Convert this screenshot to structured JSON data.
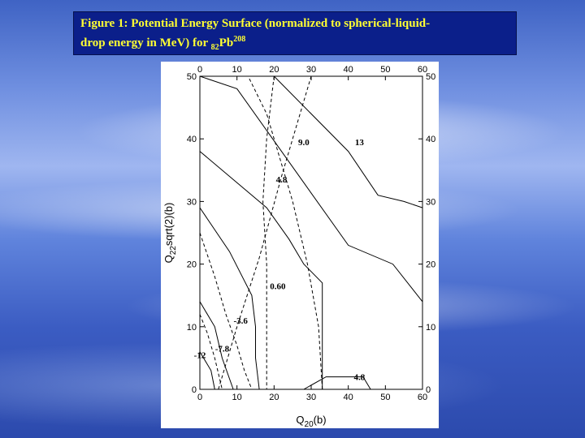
{
  "title": {
    "line1": "Figure 1: Potential Energy Surface (normalized to spherical-liquid-",
    "line2_prefix": "drop energy in MeV) for ",
    "sub": "82",
    "element": "Pb",
    "sup": "208"
  },
  "chart_data": {
    "type": "line",
    "xlabel": "Q20(b)",
    "ylabel": "Q22sqrt(2)(b)",
    "xlim": [
      0,
      60
    ],
    "ylim": [
      0,
      50
    ],
    "x_ticks": [
      0,
      10,
      20,
      30,
      40,
      50,
      60
    ],
    "y_ticks": [
      0,
      10,
      20,
      30,
      40,
      50
    ],
    "grid": false,
    "contour_labels": [
      "13",
      "9.0",
      "4.8",
      "0.60",
      "-3.6",
      "-7.8",
      "-12",
      "4.8"
    ],
    "series": [
      {
        "points": [
          [
            20,
            50
          ],
          [
            40,
            38
          ],
          [
            48,
            31
          ],
          [
            55,
            30
          ],
          [
            60,
            29
          ]
        ],
        "linestyle": "solid"
      },
      {
        "points": [
          [
            0,
            50
          ],
          [
            10,
            48
          ],
          [
            28,
            33
          ],
          [
            40,
            23
          ],
          [
            52,
            20
          ],
          [
            60,
            14
          ]
        ],
        "linestyle": "solid"
      },
      {
        "points": [
          [
            0,
            38
          ],
          [
            10,
            33
          ],
          [
            18,
            29
          ],
          [
            24,
            24
          ],
          [
            28,
            20
          ],
          [
            33,
            17
          ],
          [
            33,
            9
          ],
          [
            33,
            0
          ]
        ],
        "linestyle": "solid"
      },
      {
        "points": [
          [
            0,
            29
          ],
          [
            8,
            22
          ],
          [
            14,
            15
          ],
          [
            15,
            10
          ],
          [
            15,
            5
          ],
          [
            16,
            0
          ]
        ],
        "linestyle": "solid"
      },
      {
        "points": [
          [
            0,
            14
          ],
          [
            4,
            10
          ],
          [
            6,
            5
          ],
          [
            9,
            0
          ]
        ],
        "linestyle": "solid"
      },
      {
        "points": [
          [
            0,
            6
          ],
          [
            3,
            3
          ],
          [
            4,
            0
          ]
        ],
        "linestyle": "solid"
      },
      {
        "points": [
          [
            28,
            0
          ],
          [
            34,
            2
          ],
          [
            40,
            2
          ],
          [
            44,
            2
          ],
          [
            46,
            0
          ]
        ],
        "linestyle": "solid"
      },
      {
        "points": [
          [
            0,
            25
          ],
          [
            4,
            18
          ],
          [
            7,
            12
          ],
          [
            10,
            7
          ],
          [
            12,
            3
          ],
          [
            14,
            0
          ]
        ],
        "linestyle": "dashed"
      },
      {
        "points": [
          [
            0,
            12
          ],
          [
            2,
            9
          ],
          [
            4,
            5
          ],
          [
            6,
            0
          ]
        ],
        "linestyle": "dashed"
      },
      {
        "points": [
          [
            20,
            50
          ],
          [
            18,
            40
          ],
          [
            17,
            30
          ],
          [
            18,
            20
          ],
          [
            18,
            10
          ],
          [
            18,
            0
          ]
        ],
        "linestyle": "dashed"
      },
      {
        "points": [
          [
            5,
            0
          ],
          [
            10,
            10
          ],
          [
            16,
            21
          ],
          [
            22,
            34
          ],
          [
            27,
            44
          ],
          [
            30,
            50
          ]
        ],
        "linestyle": "dashed"
      },
      {
        "points": [
          [
            33,
            0
          ],
          [
            32,
            10
          ],
          [
            29,
            20
          ],
          [
            25,
            30
          ],
          [
            22,
            36
          ],
          [
            18,
            44
          ],
          [
            13,
            50
          ]
        ],
        "linestyle": "dashed"
      }
    ]
  }
}
